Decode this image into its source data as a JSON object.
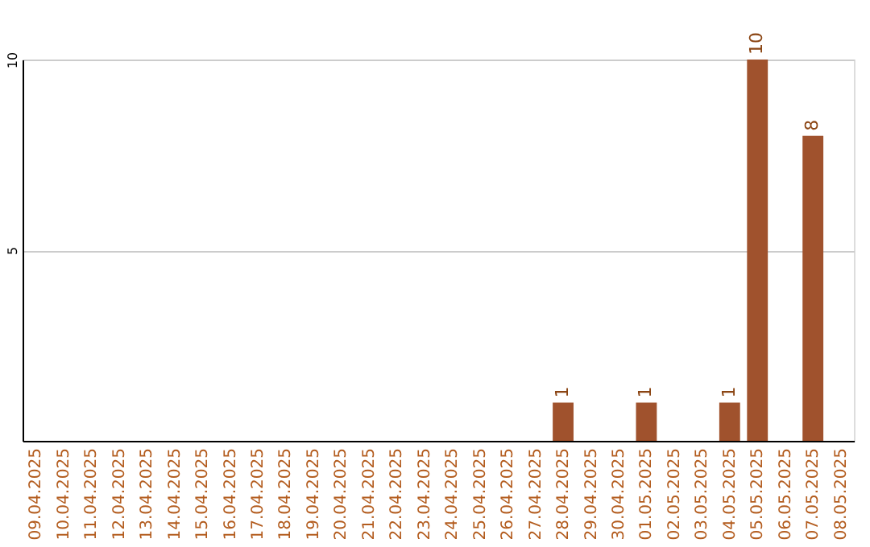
{
  "chart_data": {
    "type": "bar",
    "categories": [
      "09.04.2025",
      "10.04.2025",
      "11.04.2025",
      "12.04.2025",
      "13.04.2025",
      "14.04.2025",
      "15.04.2025",
      "16.04.2025",
      "17.04.2025",
      "18.04.2025",
      "19.04.2025",
      "20.04.2025",
      "21.04.2025",
      "22.04.2025",
      "23.04.2025",
      "24.04.2025",
      "25.04.2025",
      "26.04.2025",
      "27.04.2025",
      "28.04.2025",
      "29.04.2025",
      "30.04.2025",
      "01.05.2025",
      "02.05.2025",
      "03.05.2025",
      "04.05.2025",
      "05.05.2025",
      "06.05.2025",
      "07.05.2025",
      "08.05.2025"
    ],
    "values": [
      0,
      0,
      0,
      0,
      0,
      0,
      0,
      0,
      0,
      0,
      0,
      0,
      0,
      0,
      0,
      0,
      0,
      0,
      0,
      1,
      0,
      0,
      1,
      0,
      0,
      1,
      10,
      0,
      8,
      0
    ],
    "value_labels": [
      null,
      null,
      null,
      null,
      null,
      null,
      null,
      null,
      null,
      null,
      null,
      null,
      null,
      null,
      null,
      null,
      null,
      null,
      null,
      "1",
      null,
      null,
      "1",
      null,
      null,
      "1",
      "10",
      null,
      "8",
      null
    ],
    "color": "#a0522d",
    "ylim": [
      0,
      10
    ],
    "yticks": [
      5,
      10
    ],
    "grid": "y"
  }
}
